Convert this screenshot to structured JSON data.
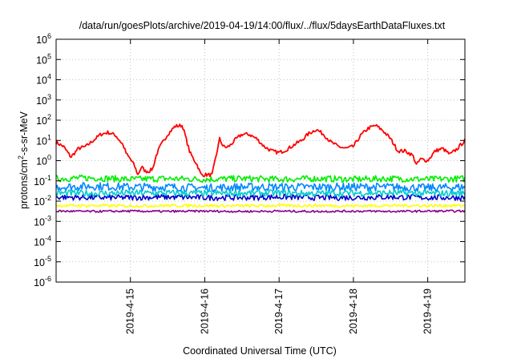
{
  "chart_data": {
    "type": "line",
    "title": "/data/run/goesPlots/archive/2019-04-19/14:00/flux/../flux/5daysEarthDataFluxes.txt",
    "xlabel": "Coordinated Universal Time (UTC)",
    "ylabel": {
      "base": "protons/cm",
      "sup": "2",
      "rest": "-s-sr-MeV"
    },
    "yscale": "log",
    "ylim": [
      1e-06,
      1000000.0
    ],
    "y_ticks": [
      {
        "base": "10",
        "exp": "-6"
      },
      {
        "base": "10",
        "exp": "-5"
      },
      {
        "base": "10",
        "exp": "-4"
      },
      {
        "base": "10",
        "exp": "-3"
      },
      {
        "base": "10",
        "exp": "-2"
      },
      {
        "base": "10",
        "exp": "-1"
      },
      {
        "base": "10",
        "exp": "0"
      },
      {
        "base": "10",
        "exp": "1"
      },
      {
        "base": "10",
        "exp": "2"
      },
      {
        "base": "10",
        "exp": "3"
      },
      {
        "base": "10",
        "exp": "4"
      },
      {
        "base": "10",
        "exp": "5"
      },
      {
        "base": "10",
        "exp": "6"
      }
    ],
    "xlim": [
      "2019-04-14 02:00",
      "2019-04-19 14:00"
    ],
    "x_tick_labels": [
      "2019-4-15",
      "2019-4-16",
      "2019-4-17",
      "2019-4-18",
      "2019-4-19"
    ],
    "x_tick_days": [
      1,
      2,
      3,
      4,
      5
    ],
    "grid": true,
    "legend": "none",
    "series": [
      {
        "color": "#ff0000",
        "x_days": [
          0.0,
          0.1,
          0.2,
          0.3,
          0.4,
          0.5,
          0.6,
          0.7,
          0.8,
          0.9,
          0.95,
          1.0,
          1.05,
          1.1,
          1.15,
          1.2,
          1.25,
          1.3,
          1.35,
          1.4,
          1.5,
          1.6,
          1.7,
          1.8,
          1.9,
          1.95,
          2.0,
          2.1,
          2.2,
          2.25,
          2.3,
          2.35,
          2.4,
          2.5,
          2.6,
          2.7,
          2.8,
          2.9,
          3.0,
          3.1,
          3.2,
          3.3,
          3.4,
          3.5,
          3.6,
          3.7,
          3.8,
          3.9,
          4.0,
          4.1,
          4.2,
          4.3,
          4.4,
          4.5,
          4.6,
          4.7,
          4.8,
          4.85,
          4.9,
          5.0,
          5.1,
          5.2,
          5.3,
          5.4,
          5.5,
          5.55
        ],
        "values": [
          8,
          5,
          1.5,
          4,
          5,
          10,
          20,
          25,
          18,
          6,
          2,
          1.2,
          0.6,
          0.2,
          0.5,
          0.3,
          0.3,
          0.4,
          2,
          5,
          20,
          50,
          55,
          2.5,
          0.6,
          0.2,
          0.2,
          0.2,
          12,
          5,
          4.5,
          6,
          10,
          20,
          20,
          12,
          5,
          3,
          2.5,
          3.5,
          6,
          10,
          22,
          35,
          20,
          8,
          5,
          4,
          5,
          18,
          40,
          55,
          30,
          12,
          3,
          3,
          1.8,
          0.6,
          1.2,
          1,
          3,
          4,
          2,
          4,
          10,
          10
        ]
      },
      {
        "color": "#00ee00",
        "x_days": [
          0,
          0.5,
          1,
          1.5,
          2,
          2.5,
          3,
          3.5,
          4,
          4.5,
          5,
          5.55
        ],
        "values": [
          0.13,
          0.14,
          0.12,
          0.13,
          0.12,
          0.13,
          0.12,
          0.13,
          0.12,
          0.13,
          0.12,
          0.13
        ]
      },
      {
        "color": "#0088ff",
        "x_days": [
          0,
          0.5,
          1,
          1.5,
          2,
          2.5,
          3,
          3.5,
          4,
          4.5,
          5,
          5.55
        ],
        "values": [
          0.05,
          0.055,
          0.05,
          0.05,
          0.045,
          0.05,
          0.05,
          0.05,
          0.05,
          0.05,
          0.045,
          0.05
        ]
      },
      {
        "color": "#0000cc",
        "x_days": [
          0,
          0.5,
          1,
          1.5,
          2,
          2.5,
          3,
          3.5,
          4,
          4.5,
          5,
          5.55
        ],
        "values": [
          0.016,
          0.015,
          0.015,
          0.016,
          0.015,
          0.015,
          0.016,
          0.015,
          0.015,
          0.016,
          0.015,
          0.015
        ]
      },
      {
        "color": "#00cccc",
        "x_days": [
          0,
          0.5,
          1,
          1.5,
          2,
          2.5,
          3,
          3.5,
          4,
          4.5,
          5,
          5.55
        ],
        "values": [
          0.025,
          0.024,
          0.025,
          0.025,
          0.024,
          0.025,
          0.025,
          0.024,
          0.025,
          0.025,
          0.024,
          0.025
        ]
      },
      {
        "color": "#ffff00",
        "x_days": [
          0,
          0.5,
          1,
          1.5,
          2,
          2.5,
          3,
          3.5,
          4,
          4.5,
          5,
          5.55
        ],
        "values": [
          0.006,
          0.006,
          0.0058,
          0.006,
          0.006,
          0.0058,
          0.006,
          0.006,
          0.0058,
          0.006,
          0.006,
          0.006
        ]
      },
      {
        "color": "#880088",
        "x_days": [
          0,
          0.5,
          1,
          1.5,
          2,
          2.5,
          3,
          3.5,
          4,
          4.5,
          5,
          5.55
        ],
        "values": [
          0.0032,
          0.0031,
          0.0032,
          0.0031,
          0.0032,
          0.0031,
          0.0032,
          0.0031,
          0.0032,
          0.0031,
          0.0032,
          0.0032
        ]
      }
    ]
  }
}
